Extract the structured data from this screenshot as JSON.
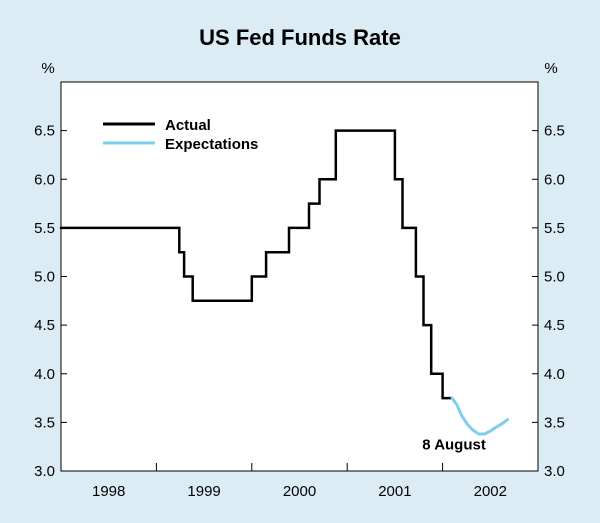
{
  "chart_data": {
    "type": "line",
    "title": "US Fed Funds Rate",
    "ylabel_left": "%",
    "ylabel_right": "%",
    "ylim": [
      3.0,
      7.0
    ],
    "yticks": [
      "3.0",
      "3.5",
      "4.0",
      "4.5",
      "5.0",
      "5.5",
      "6.0",
      "6.5"
    ],
    "xlim": [
      1997.5,
      2002.5
    ],
    "xticks": [
      {
        "label": "1998",
        "x": 1998.0
      },
      {
        "label": "1999",
        "x": 1999.0
      },
      {
        "label": "2000",
        "x": 2000.0
      },
      {
        "label": "2001",
        "x": 2001.0
      },
      {
        "label": "2002",
        "x": 2002.0
      }
    ],
    "year_boundaries": [
      1998.5,
      1999.5,
      2000.5,
      2001.5
    ],
    "legend": {
      "position": "top-left",
      "entries": [
        "Actual",
        "Expectations"
      ]
    },
    "annotation": {
      "text": "8 August",
      "x": 2001.62,
      "y": 3.27
    },
    "series": [
      {
        "name": "Actual",
        "color": "#000000",
        "step": true,
        "points": [
          [
            1997.5,
            5.5
          ],
          [
            1998.74,
            5.25
          ],
          [
            1998.79,
            5.0
          ],
          [
            1998.88,
            4.75
          ],
          [
            1999.5,
            5.0
          ],
          [
            1999.65,
            5.25
          ],
          [
            1999.89,
            5.5
          ],
          [
            2000.1,
            5.75
          ],
          [
            2000.21,
            6.0
          ],
          [
            2000.38,
            6.5
          ],
          [
            2001.0,
            6.0
          ],
          [
            2001.08,
            5.5
          ],
          [
            2001.22,
            5.0
          ],
          [
            2001.3,
            4.5
          ],
          [
            2001.38,
            4.0
          ],
          [
            2001.5,
            3.75
          ],
          [
            2001.6,
            3.75
          ]
        ]
      },
      {
        "name": "Expectations",
        "color": "#7dcfee",
        "step": false,
        "points": [
          [
            2001.6,
            3.75
          ],
          [
            2001.65,
            3.68
          ],
          [
            2001.7,
            3.57
          ],
          [
            2001.76,
            3.48
          ],
          [
            2001.82,
            3.42
          ],
          [
            2001.88,
            3.38
          ],
          [
            2001.94,
            3.38
          ],
          [
            2002.0,
            3.41
          ],
          [
            2002.06,
            3.45
          ],
          [
            2002.13,
            3.49
          ],
          [
            2002.18,
            3.53
          ]
        ]
      }
    ]
  }
}
